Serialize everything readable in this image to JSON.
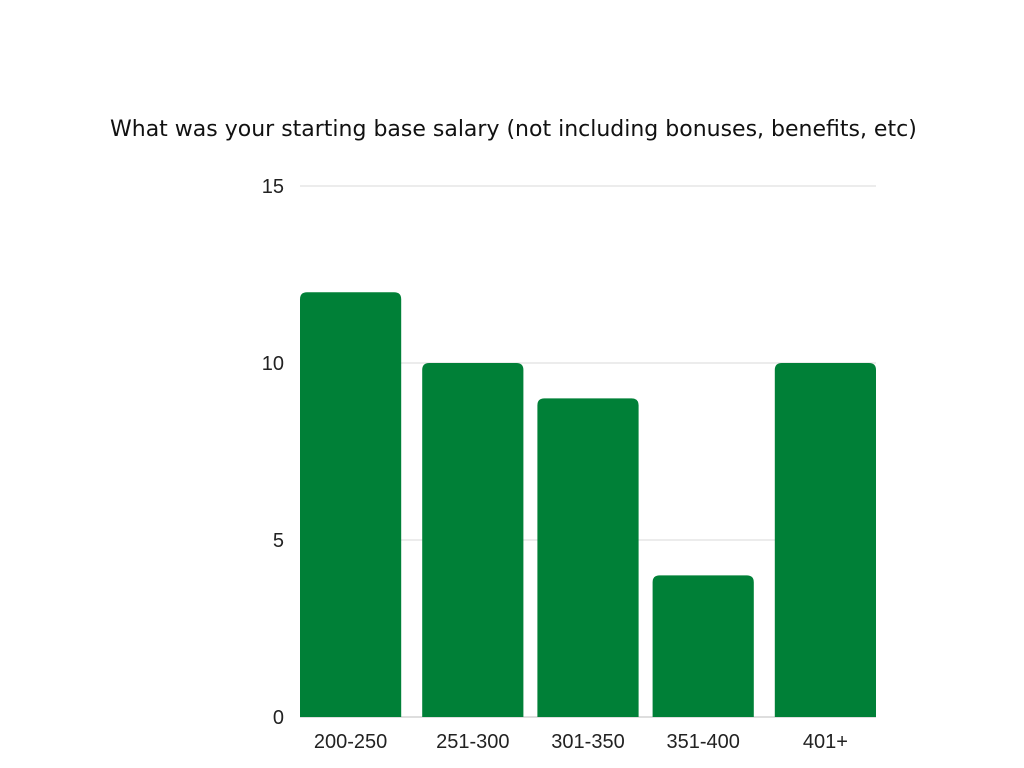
{
  "chart_data": {
    "type": "bar",
    "title": "What was your starting base salary (not including bonuses, benefits, etc)",
    "categories": [
      "200-250",
      "251-300",
      "301-350",
      "351-400",
      "401+"
    ],
    "values": [
      12,
      10,
      9,
      4,
      10
    ],
    "ylim": [
      0,
      15
    ],
    "yticks": [
      0,
      5,
      10,
      15
    ],
    "xlabel": "",
    "ylabel": "",
    "grid": true,
    "legend": "none",
    "bar_color": "#008037"
  }
}
